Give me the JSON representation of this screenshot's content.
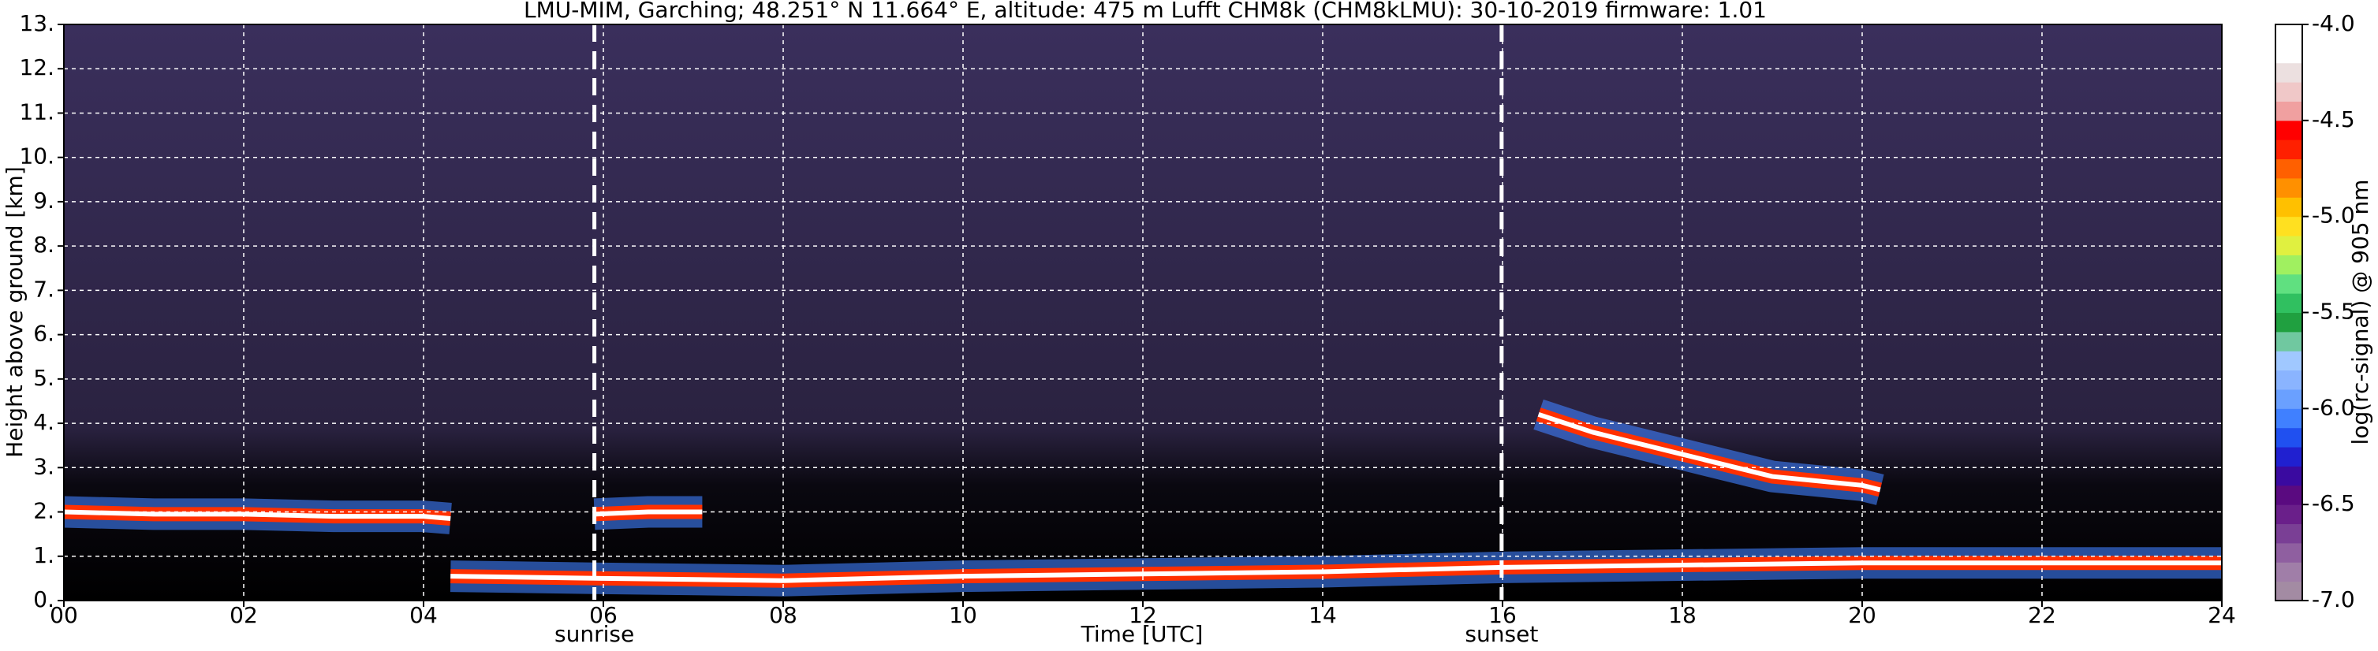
{
  "chart_data": {
    "type": "heatmap",
    "title": "LMU-MIM, Garching; 48.251° N 11.664° E, altitude: 475 m    Lufft CHM8k (CHM8kLMU): 30-10-2019    firmware: 1.01",
    "x_label": "Time [UTC]",
    "y_label": "Height above ground [km]",
    "colorbar_label": "log(rc-signal) @ 905 nm",
    "xlim": [
      0,
      24
    ],
    "xticks": [
      {
        "value": 0,
        "label": "00"
      },
      {
        "value": 2,
        "label": "02"
      },
      {
        "value": 4,
        "label": "04"
      },
      {
        "value": 6,
        "label": "06"
      },
      {
        "value": 8,
        "label": "08"
      },
      10,
      12,
      14,
      16,
      18,
      20,
      22,
      24
    ],
    "ylim": [
      0,
      13
    ],
    "yticks": [
      {
        "value": 0,
        "label": "0."
      },
      {
        "value": 1,
        "label": "1."
      },
      {
        "value": 2,
        "label": "2."
      },
      {
        "value": 3,
        "label": "3."
      },
      {
        "value": 4,
        "label": "4."
      },
      {
        "value": 5,
        "label": "5."
      },
      {
        "value": 6,
        "label": "6."
      },
      {
        "value": 7,
        "label": "7."
      },
      {
        "value": 8,
        "label": "8."
      },
      {
        "value": 9,
        "label": "9."
      },
      {
        "value": 10,
        "label": "10."
      },
      {
        "value": 11,
        "label": "11."
      },
      {
        "value": 12,
        "label": "12."
      },
      {
        "value": 13,
        "label": "13."
      }
    ],
    "grid": true,
    "clim": [
      -7.0,
      -4.0
    ],
    "cticks": [
      {
        "value": -7.0,
        "label": "-7.0"
      },
      {
        "value": -6.5,
        "label": "-6.5"
      },
      {
        "value": -6.0,
        "label": "-6.0"
      },
      {
        "value": -5.5,
        "label": "-5.5"
      },
      {
        "value": -5.0,
        "label": "-5.0"
      },
      {
        "value": -4.5,
        "label": "-4.5"
      },
      {
        "value": -4.0,
        "label": "-4.0"
      }
    ],
    "colorscale": [
      "#a38ba3",
      "#a07ea8",
      "#8f5fa0",
      "#7a3f95",
      "#6a1f8a",
      "#5a0a80",
      "#3a0aa0",
      "#2020d0",
      "#2050f0",
      "#4080ff",
      "#6aa0ff",
      "#8ab4ff",
      "#a0c8ff",
      "#70c8a0",
      "#20a040",
      "#30c060",
      "#60e080",
      "#a0f060",
      "#e0f040",
      "#ffe020",
      "#ffc000",
      "#ff9000",
      "#ff6000",
      "#ff2000",
      "#ff0000",
      "#f0a0a0",
      "#f0c8c8",
      "#ece0e0",
      "#ffffff",
      "#ffffff"
    ],
    "series": [
      {
        "color": "#ff3000",
        "x": [
          0,
          1,
          2,
          3,
          4,
          4.3
        ],
        "values": [
          2.0,
          1.95,
          1.95,
          1.9,
          1.9,
          1.85
        ]
      },
      {
        "color": "#ff3000",
        "x": [
          4.3,
          6,
          8,
          10,
          12,
          14,
          16,
          18,
          20,
          22,
          24
        ],
        "values": [
          0.55,
          0.5,
          0.45,
          0.55,
          0.6,
          0.65,
          0.75,
          0.8,
          0.85,
          0.85,
          0.85
        ]
      },
      {
        "color": "#ff3000",
        "x": [
          5.9,
          6.5,
          7.1
        ],
        "values": [
          1.95,
          2.0,
          2.0
        ]
      },
      {
        "color": "#ff3000",
        "x": [
          16.4,
          17,
          18,
          19,
          20,
          20.2
        ],
        "values": [
          4.2,
          3.8,
          3.3,
          2.8,
          2.6,
          2.5
        ]
      }
    ],
    "annotations": [
      {
        "x": 5.9,
        "label": "sunrise"
      },
      {
        "x": 15.99,
        "label": "sunset"
      }
    ]
  }
}
